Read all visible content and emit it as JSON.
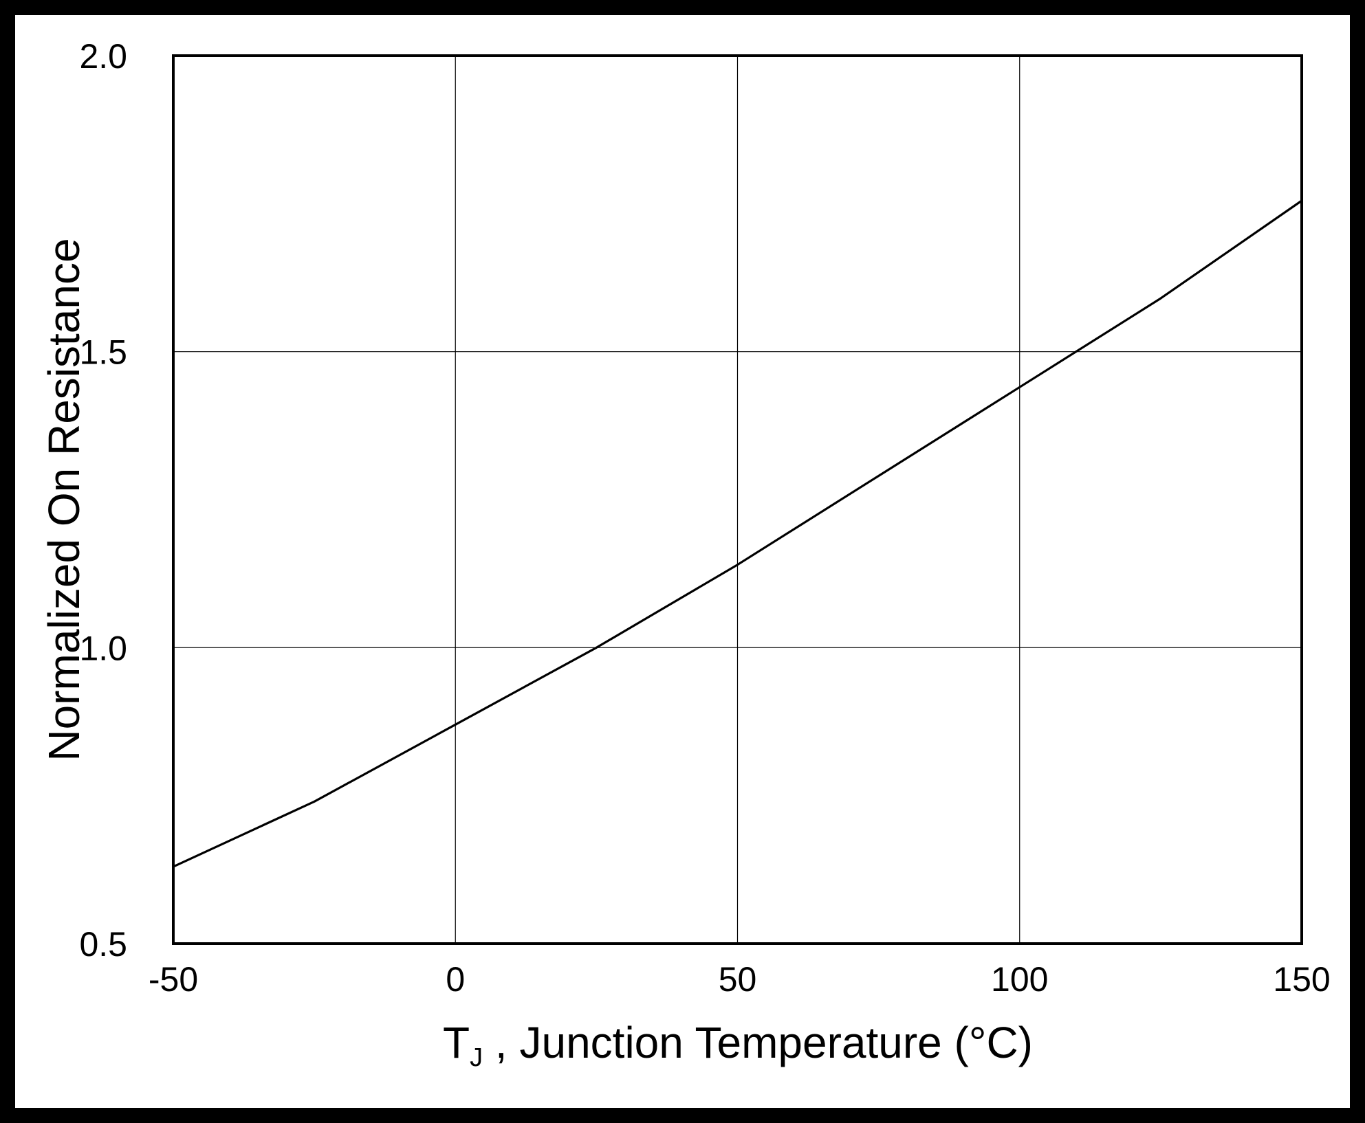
{
  "chart_data": {
    "type": "line",
    "title": "",
    "xlabel": {
      "symbol": "T",
      "subscript": "J",
      "text": " , Junction Temperature (°C)"
    },
    "ylabel": "Normalized On Resistance",
    "xlim": [
      -50,
      150
    ],
    "ylim": [
      0.5,
      2.0
    ],
    "xticks": [
      "-50",
      "0",
      "50",
      "100",
      "150"
    ],
    "yticks": [
      "0.5",
      "1.0",
      "1.5",
      "2.0"
    ],
    "xtick_values": [
      -50,
      0,
      50,
      100,
      150
    ],
    "ytick_values": [
      0.5,
      1.0,
      1.5,
      2.0
    ],
    "grid": true,
    "series": [
      {
        "x": [
          -50,
          -25,
          0,
          25,
          50,
          75,
          100,
          125,
          150
        ],
        "y": [
          0.63,
          0.74,
          0.87,
          1.0,
          1.14,
          1.29,
          1.44,
          1.59,
          1.755
        ]
      }
    ],
    "colors": {
      "background": "#ffffff",
      "line": "#000000",
      "frame": "#000000"
    }
  }
}
